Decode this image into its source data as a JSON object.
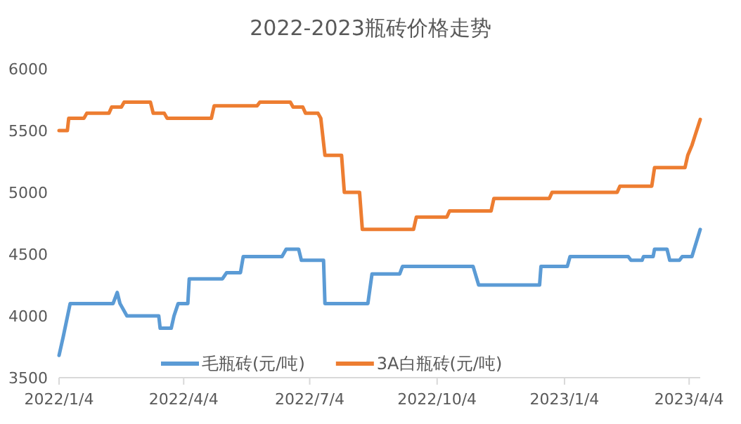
{
  "chart_data": {
    "type": "line",
    "title": "2022-2023瓶砖价格走势",
    "xlim": [
      "2022-01-04",
      "2023-04-12"
    ],
    "ylim": [
      3500,
      6000
    ],
    "yticks": [
      3500,
      4000,
      4500,
      5000,
      5500,
      6000
    ],
    "xticks": [
      {
        "value": "2022-01-04",
        "label": "2022/1/4"
      },
      {
        "value": "2022-04-04",
        "label": "2022/4/4"
      },
      {
        "value": "2022-07-04",
        "label": "2022/7/4"
      },
      {
        "value": "2022-10-04",
        "label": "2022/10/4"
      },
      {
        "value": "2023-01-04",
        "label": "2023/1/4"
      },
      {
        "value": "2023-04-04",
        "label": "2023/4/4"
      }
    ],
    "legend": "bottom",
    "series": [
      {
        "name": "毛瓶砖(元/吨)",
        "color": "#5b9bd5",
        "x": [
          "2022-01-04",
          "2022-01-07",
          "2022-01-12",
          "2022-02-12",
          "2022-02-15",
          "2022-02-17",
          "2022-02-22",
          "2022-03-17",
          "2022-03-18",
          "2022-03-26",
          "2022-03-28",
          "2022-03-31",
          "2022-04-07",
          "2022-04-08",
          "2022-05-02",
          "2022-05-05",
          "2022-05-15",
          "2022-05-17",
          "2022-06-14",
          "2022-06-17",
          "2022-06-26",
          "2022-06-28",
          "2022-07-14",
          "2022-07-15",
          "2022-08-15",
          "2022-08-18",
          "2022-09-07",
          "2022-09-09",
          "2022-10-30",
          "2022-11-03",
          "2022-12-17",
          "2022-12-18",
          "2023-01-06",
          "2023-01-08",
          "2023-02-19",
          "2023-02-21",
          "2023-03-01",
          "2023-03-02",
          "2023-03-09",
          "2023-03-10",
          "2023-03-19",
          "2023-03-21",
          "2023-03-28",
          "2023-03-30",
          "2023-04-06",
          "2023-04-12"
        ],
        "values": [
          3680,
          3830,
          4100,
          4100,
          4190,
          4100,
          4000,
          4000,
          3900,
          3900,
          4000,
          4100,
          4100,
          4300,
          4300,
          4350,
          4350,
          4480,
          4480,
          4540,
          4540,
          4450,
          4450,
          4100,
          4100,
          4340,
          4340,
          4400,
          4400,
          4250,
          4250,
          4400,
          4400,
          4480,
          4480,
          4450,
          4450,
          4480,
          4480,
          4540,
          4540,
          4450,
          4450,
          4480,
          4480,
          4700
        ]
      },
      {
        "name": "3A白瓶砖(元/吨)",
        "color": "#ed7d31",
        "x": [
          "2022-01-04",
          "2022-01-10",
          "2022-01-11",
          "2022-01-22",
          "2022-01-24",
          "2022-02-09",
          "2022-02-11",
          "2022-02-18",
          "2022-02-20",
          "2022-03-11",
          "2022-03-13",
          "2022-03-21",
          "2022-03-23",
          "2022-04-24",
          "2022-04-26",
          "2022-05-27",
          "2022-05-29",
          "2022-06-20",
          "2022-06-22",
          "2022-06-29",
          "2022-07-01",
          "2022-07-10",
          "2022-07-12",
          "2022-07-15",
          "2022-07-27",
          "2022-07-29",
          "2022-08-09",
          "2022-08-11",
          "2022-09-17",
          "2022-09-19",
          "2022-10-11",
          "2022-10-13",
          "2022-11-12",
          "2022-11-14",
          "2022-12-24",
          "2022-12-26",
          "2023-02-11",
          "2023-02-13",
          "2023-03-08",
          "2023-03-10",
          "2023-04-01",
          "2023-04-03",
          "2023-04-06",
          "2023-04-08",
          "2023-04-12"
        ],
        "values": [
          5500,
          5500,
          5600,
          5600,
          5640,
          5640,
          5690,
          5690,
          5730,
          5730,
          5640,
          5640,
          5600,
          5600,
          5700,
          5700,
          5730,
          5730,
          5690,
          5690,
          5640,
          5640,
          5600,
          5300,
          5300,
          5000,
          5000,
          4700,
          4700,
          4800,
          4800,
          4850,
          4850,
          4950,
          4950,
          5000,
          5000,
          5050,
          5050,
          5200,
          5200,
          5300,
          5380,
          5450,
          5590
        ]
      }
    ]
  }
}
